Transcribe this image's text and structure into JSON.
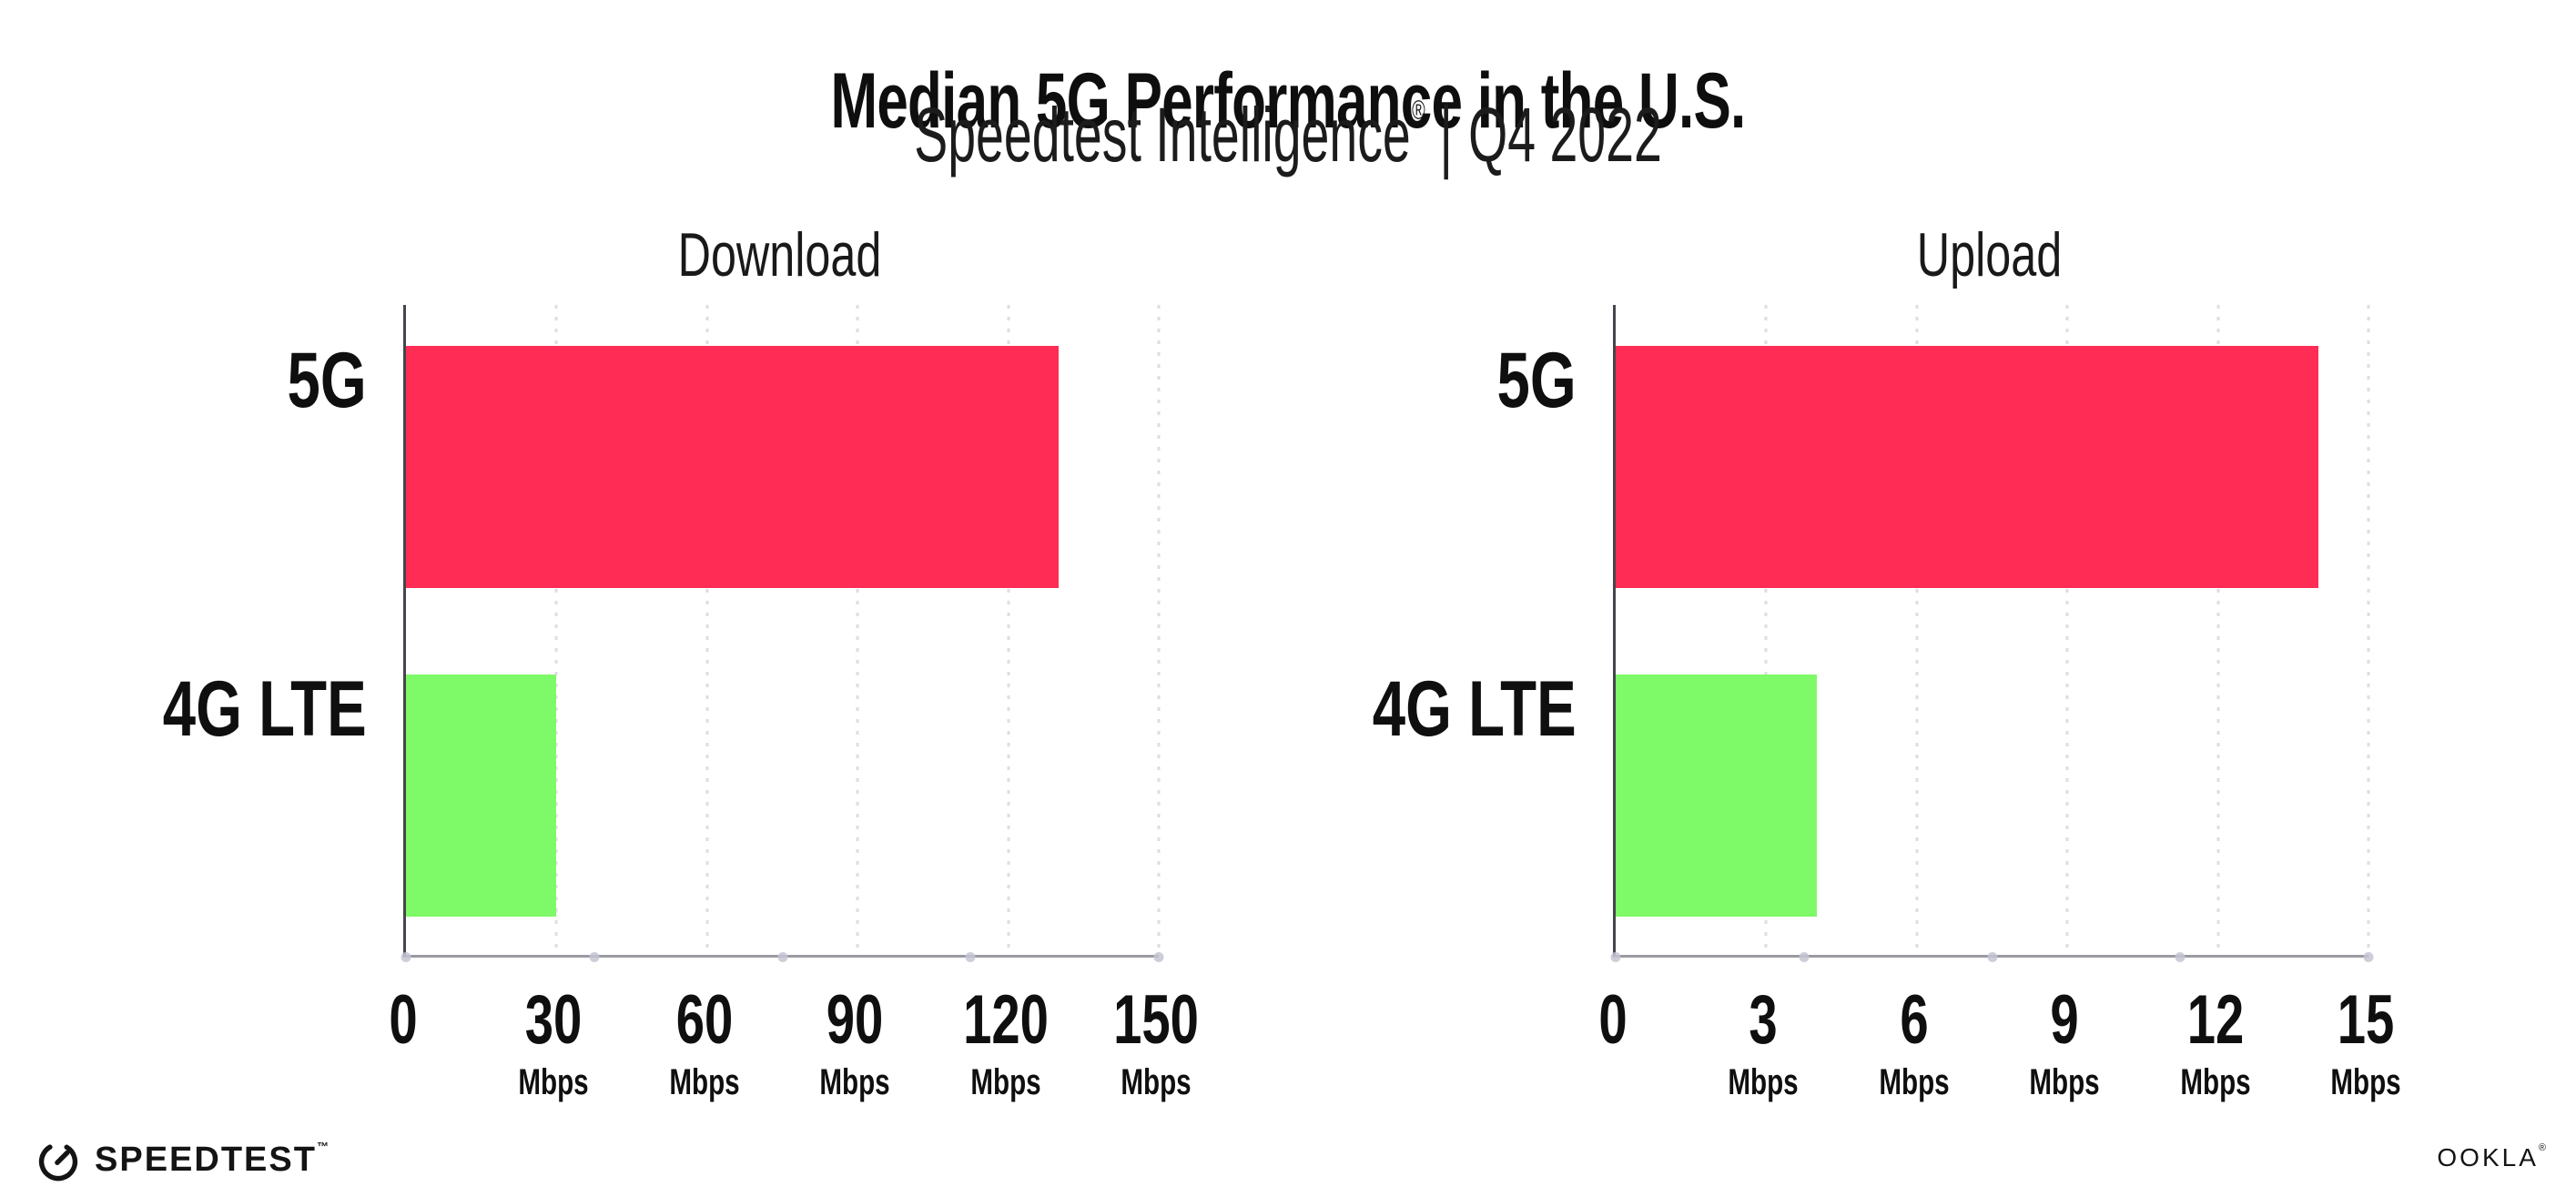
{
  "header": {
    "title": "Median 5G Performance in the U.S.",
    "subtitle_brand": "Speedtest Intelligence",
    "subtitle_reg": "®",
    "subtitle_sep": "|",
    "subtitle_period": "Q4 2022"
  },
  "chart_data": [
    {
      "type": "bar",
      "orientation": "horizontal",
      "title": "Download",
      "categories": [
        "5G",
        "4G LTE"
      ],
      "values": [
        130,
        30
      ],
      "unit": "Mbps",
      "xlim": [
        0,
        150
      ],
      "ticks": [
        0,
        30,
        60,
        90,
        120,
        150
      ],
      "tick_unit": "Mbps",
      "bar_colors": [
        "#FF2D55",
        "#7EF967"
      ],
      "grid": "dotted-vertical",
      "legend": "none",
      "xlabel": "Mbps",
      "ylabel": ""
    },
    {
      "type": "bar",
      "orientation": "horizontal",
      "title": "Upload",
      "categories": [
        "5G",
        "4G LTE"
      ],
      "values": [
        14,
        4
      ],
      "unit": "Mbps",
      "xlim": [
        0,
        15
      ],
      "ticks": [
        0,
        3,
        6,
        9,
        12,
        15
      ],
      "tick_unit": "Mbps",
      "bar_colors": [
        "#FF2D55",
        "#7EF967"
      ],
      "grid": "dotted-vertical",
      "legend": "none",
      "xlabel": "Mbps",
      "ylabel": ""
    }
  ],
  "footer": {
    "speedtest_label": "SPEEDTEST",
    "speedtest_tm": "™",
    "ookla_label": "OOKLA",
    "ookla_reg": "®"
  },
  "colors": {
    "bar_5g": "#FF2D55",
    "bar_4g_lte": "#7EF967",
    "axis": "#9a9aa2",
    "y_axis": "#45454c",
    "gridline": "#dddde5",
    "text": "#0f0f0f",
    "background": "#ffffff"
  }
}
